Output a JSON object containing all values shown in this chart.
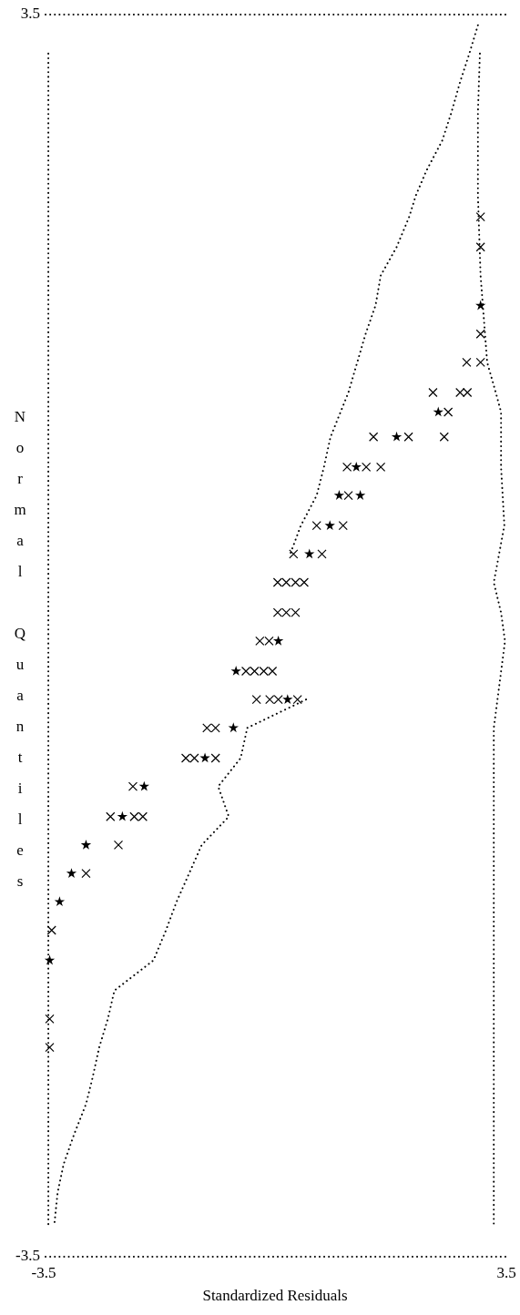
{
  "chart_data": {
    "type": "scatter",
    "xlabel": "Standardized Residuals",
    "ylabel": "Normal Quantiles",
    "xlim": [
      -3.5,
      3.5
    ],
    "ylim": [
      -3.5,
      3.5
    ],
    "xticks": [
      -3.5,
      3.5
    ],
    "yticks": [
      -3.5,
      3.5
    ],
    "grid": false,
    "ref_lines": [
      {
        "axis": "y",
        "value": 3.5,
        "line_style": "dotted"
      },
      {
        "axis": "y",
        "value": -3.5,
        "line_style": "dotted"
      }
    ],
    "series": [
      {
        "marker": "cross",
        "color": "#000000",
        "x": [
          3.11,
          3.11,
          3.11,
          2.9,
          3.11,
          2.39,
          2.8,
          2.91,
          2.62,
          1.49,
          2.02,
          2.56,
          1.09,
          1.38,
          1.6,
          1.11,
          0.63,
          1.03,
          0.28,
          0.71,
          0.04,
          0.17,
          0.31,
          0.44,
          0.04,
          0.17,
          0.31,
          -0.23,
          -0.09,
          -0.44,
          -0.31,
          -0.17,
          -0.04,
          -0.28,
          -0.08,
          0.05,
          0.34,
          -1.03,
          -0.9,
          -1.35,
          -1.22,
          -0.9,
          -2.15,
          -2.49,
          -2.13,
          -2.0,
          -2.37,
          -2.86,
          -3.38,
          -3.41,
          -3.41
        ],
        "values": [
          2.36,
          2.19,
          1.7,
          1.54,
          1.54,
          1.37,
          1.37,
          1.37,
          1.26,
          1.12,
          1.12,
          1.12,
          0.95,
          0.95,
          0.95,
          0.79,
          0.62,
          0.62,
          0.46,
          0.46,
          0.3,
          0.3,
          0.3,
          0.3,
          0.13,
          0.13,
          0.13,
          -0.03,
          -0.03,
          -0.2,
          -0.2,
          -0.2,
          -0.2,
          -0.36,
          -0.36,
          -0.36,
          -0.36,
          -0.52,
          -0.52,
          -0.69,
          -0.69,
          -0.69,
          -0.85,
          -1.02,
          -1.02,
          -1.02,
          -1.18,
          -1.34,
          -1.66,
          -2.16,
          -2.32
        ]
      },
      {
        "marker": "star",
        "color": "#000000",
        "x": [
          3.11,
          2.47,
          1.84,
          1.23,
          0.97,
          1.29,
          0.83,
          0.52,
          0.05,
          -0.59,
          0.19,
          -0.63,
          -1.06,
          -1.98,
          -2.31,
          -2.86,
          -3.08,
          -3.26,
          -3.41
        ],
        "values": [
          1.86,
          1.26,
          1.12,
          0.95,
          0.79,
          0.79,
          0.62,
          0.46,
          -0.03,
          -0.2,
          -0.36,
          -0.52,
          -0.69,
          -0.85,
          -1.02,
          -1.18,
          -1.34,
          -1.5,
          -1.83
        ]
      },
      {
        "type": "line",
        "marker": "none",
        "line_style": "dotted",
        "color": "#000000",
        "x": [
          3.07,
          2.94,
          2.8,
          2.67,
          2.53,
          2.29,
          2.13,
          2.03,
          1.84,
          1.6,
          1.52,
          1.37,
          1.11,
          0.84,
          0.74,
          0.63,
          0.39,
          0.23
        ],
        "values": [
          3.44,
          3.28,
          3.12,
          2.95,
          2.79,
          2.62,
          2.48,
          2.36,
          2.19,
          2.03,
          1.86,
          1.7,
          1.37,
          1.12,
          0.95,
          0.79,
          0.62,
          0.46
        ]
      },
      {
        "type": "line",
        "marker": "none",
        "line_style": "dotted",
        "color": "#000000",
        "x": [
          0.47,
          -0.42,
          -0.52,
          -0.86,
          -0.7,
          -1.11,
          -1.3,
          -1.49,
          -1.65,
          -1.84,
          -2.43,
          -2.53,
          -2.66,
          -2.76,
          -2.86,
          -3.04,
          -3.2,
          -3.29,
          -3.34
        ],
        "values": [
          -0.36,
          -0.52,
          -0.69,
          -0.85,
          -1.02,
          -1.18,
          -1.34,
          -1.5,
          -1.66,
          -1.83,
          -2.0,
          -2.16,
          -2.32,
          -2.49,
          -2.64,
          -2.81,
          -2.98,
          -3.14,
          -3.32
        ]
      },
      {
        "type": "line",
        "marker": "none",
        "line_style": "dotted",
        "color": "#000000",
        "x": [
          3.1,
          3.07,
          3.07,
          3.11,
          3.21,
          3.34,
          3.42,
          3.42,
          3.47,
          3.31,
          3.42,
          3.48,
          3.31,
          3.31,
          3.31,
          3.31
        ],
        "values": [
          3.28,
          2.95,
          2.48,
          2.03,
          1.54,
          1.37,
          1.26,
          0.95,
          0.62,
          0.3,
          0.13,
          -0.03,
          -0.52,
          -0.85,
          -1.55,
          -3.32
        ]
      },
      {
        "type": "line",
        "marker": "none",
        "line_style": "dotted",
        "color": "#000000",
        "x": [
          -3.43,
          -3.43
        ],
        "values": [
          3.28,
          -3.32
        ]
      }
    ]
  }
}
